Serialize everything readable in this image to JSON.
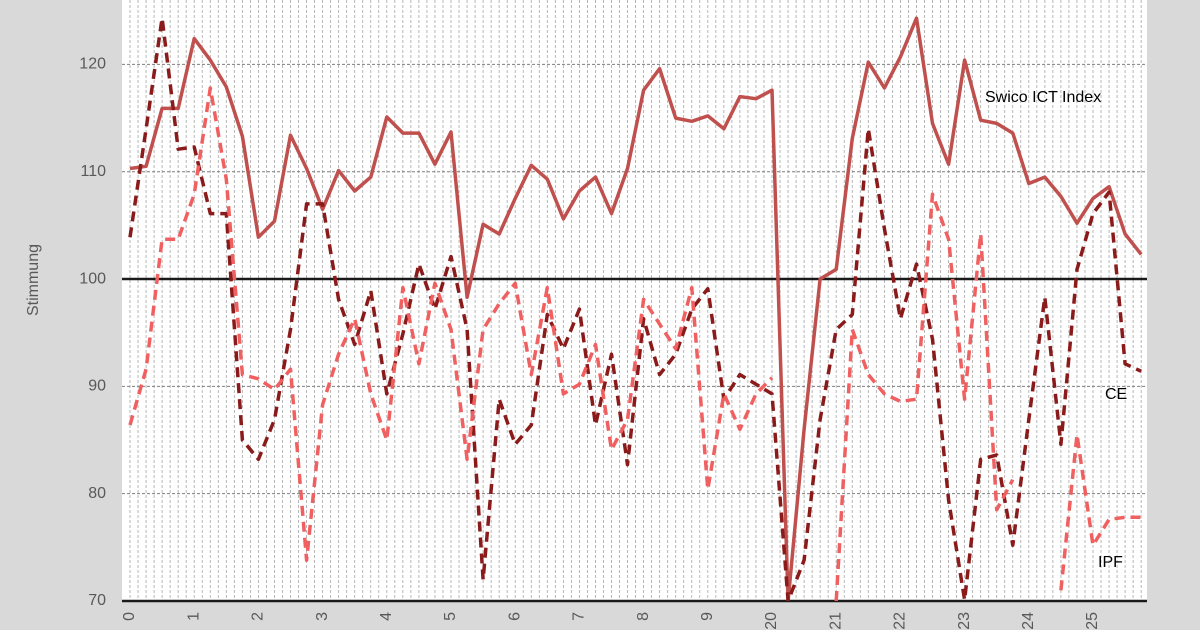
{
  "chart_data": {
    "type": "line",
    "y_label": "Stimmung",
    "categories": [
      "0",
      null,
      null,
      null,
      "1",
      null,
      null,
      null,
      "2",
      null,
      null,
      null,
      "3",
      null,
      null,
      null,
      "4",
      null,
      null,
      null,
      "5",
      null,
      null,
      null,
      "6",
      null,
      null,
      null,
      "7",
      null,
      null,
      null,
      "8",
      null,
      null,
      null,
      "9",
      null,
      null,
      null,
      "20",
      null,
      null,
      null,
      "21",
      null,
      null,
      null,
      "22",
      null,
      null,
      null,
      "23",
      null,
      null,
      null,
      "24",
      null,
      null,
      null,
      "25",
      null,
      null,
      null
    ],
    "ylim": [
      70,
      126
    ],
    "yticks": [
      70,
      80,
      90,
      100,
      110,
      120
    ],
    "reference_line": 100,
    "grid": true,
    "series": [
      {
        "name": "Swico ICT Index",
        "color": "#c0504d",
        "dashed": false,
        "values": [
          110.3,
          110.5,
          115.9,
          115.9,
          122.4,
          120.4,
          117.9,
          113.3,
          103.9,
          105.4,
          113.4,
          110.3,
          106.5,
          110.1,
          108.2,
          109.5,
          115.1,
          113.6,
          113.6,
          110.7,
          113.7,
          98.3,
          105.1,
          104.2,
          107.5,
          110.6,
          109.3,
          105.6,
          108.2,
          109.5,
          106.1,
          110.3,
          117.6,
          119.6,
          115.0,
          114.7,
          115.2,
          114.0,
          117.0,
          116.8,
          117.6,
          70,
          86,
          100.0,
          100.9,
          113.1,
          120.2,
          117.8,
          120.7,
          124.3,
          114.5,
          110.7,
          120.4,
          114.8,
          114.5,
          113.6,
          108.9,
          109.5,
          107.7,
          105.2,
          107.5,
          108.6,
          104.2,
          102.3
        ]
      },
      {
        "name": "CE",
        "color": "#8b1a1a",
        "dashed": true,
        "values": [
          103.9,
          114.0,
          124.3,
          112.1,
          112.3,
          106.1,
          106.1,
          85.0,
          83.2,
          86.9,
          95.3,
          107.0,
          107.0,
          98.1,
          93.9,
          98.9,
          89.3,
          94.9,
          101.4,
          97.2,
          102.1,
          95.3,
          72.0,
          88.8,
          84.6,
          86.4,
          96.7,
          93.5,
          97.2,
          86.4,
          93.0,
          82.7,
          96.3,
          91.1,
          93.0,
          97.2,
          99.1,
          88.8,
          91.1,
          90.2,
          89.3,
          70,
          73.8,
          86.9,
          95.3,
          96.7,
          114.0,
          104.7,
          96.3,
          101.4,
          94.4,
          79.4,
          70.1,
          83.2,
          83.6,
          75.2,
          86.9,
          98.3,
          84.6,
          100.9,
          106.1,
          108.1,
          92.1,
          91.4
        ]
      },
      {
        "name": "IPF",
        "color": "#f06060",
        "dashed": true,
        "values": [
          86.4,
          91.6,
          103.7,
          103.7,
          107.9,
          117.8,
          109.3,
          91.1,
          90.7,
          89.7,
          91.6,
          73.8,
          88.3,
          93.0,
          96.3,
          89.3,
          85.0,
          99.2,
          92.1,
          99.6,
          95.3,
          83.2,
          95.3,
          97.7,
          99.6,
          91.1,
          99.2,
          89.3,
          90.2,
          93.9,
          84.1,
          86.9,
          98.1,
          95.8,
          93.5,
          99.2,
          80.4,
          89.3,
          86.0,
          89.3,
          90.8,
          null,
          null,
          null,
          70,
          95.3,
          91.1,
          89.3,
          88.6,
          88.8,
          107.9,
          103.7,
          88.8,
          104.2,
          78.5,
          81.3,
          null,
          null,
          71.0,
          85.5,
          75.2,
          77.6,
          77.8,
          77.8
        ]
      }
    ]
  }
}
